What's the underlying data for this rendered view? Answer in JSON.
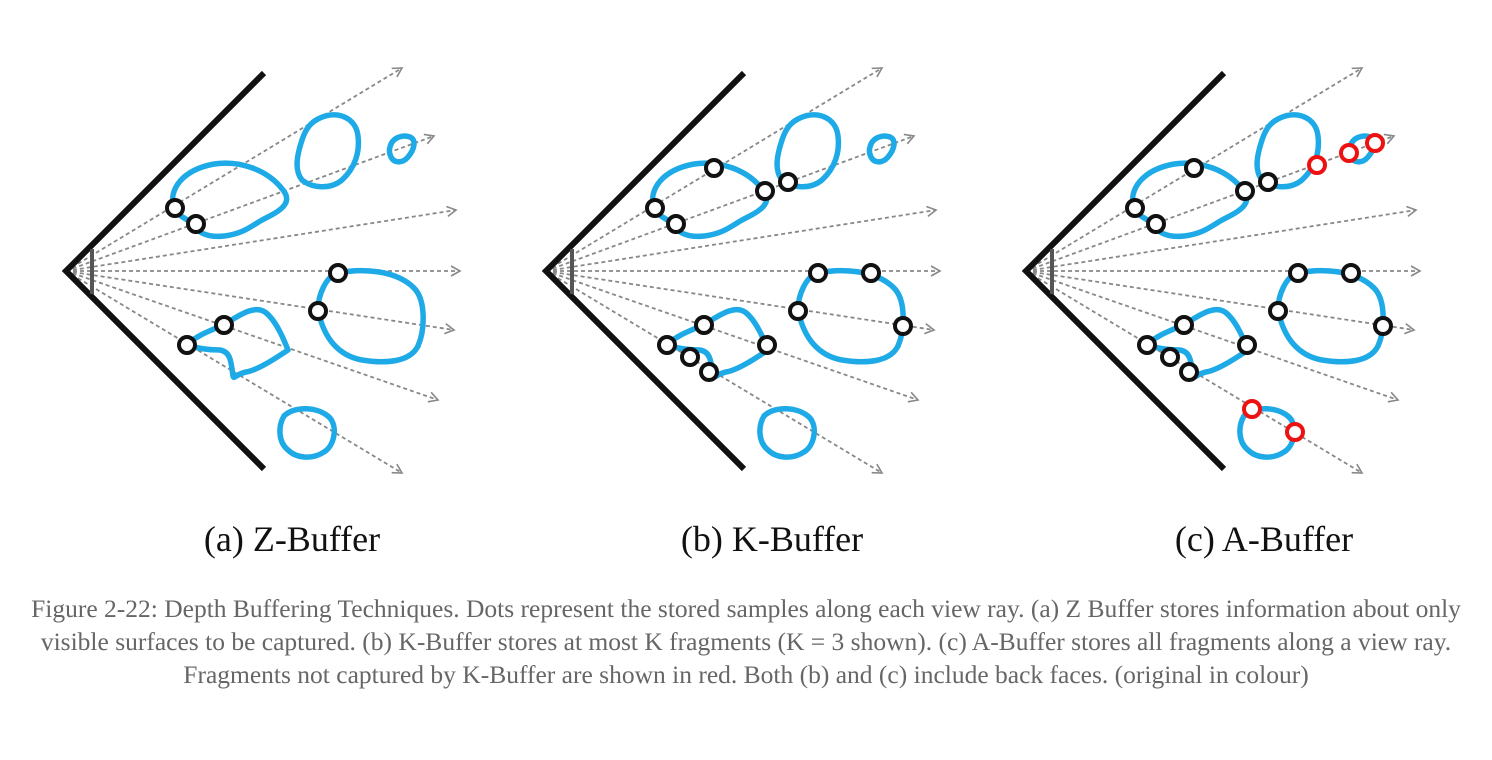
{
  "panels": [
    {
      "id": "a",
      "label": "(a)  Z-Buffer"
    },
    {
      "id": "b",
      "label": "(b)  K-Buffer"
    },
    {
      "id": "c",
      "label": "(c)  A-Buffer"
    }
  ],
  "caption": "Figure 2-22: Depth Buffering Techniques. Dots represent the stored samples along each view ray. (a) Z Buffer stores information about only visible surfaces to be captured. (b) K-Buffer stores at most K fragments (K = 3 shown). (c) A-Buffer stores all fragments along a view ray. Fragments not captured by K-Buffer are shown in red. Both (b) and (c) include back faces. (original in colour)",
  "colors": {
    "frustum": "#111111",
    "ray": "#888888",
    "surface": "#1eaae6",
    "sample": "#111111",
    "uncaptured_sample": "#ee1111",
    "caption": "#666666"
  }
}
